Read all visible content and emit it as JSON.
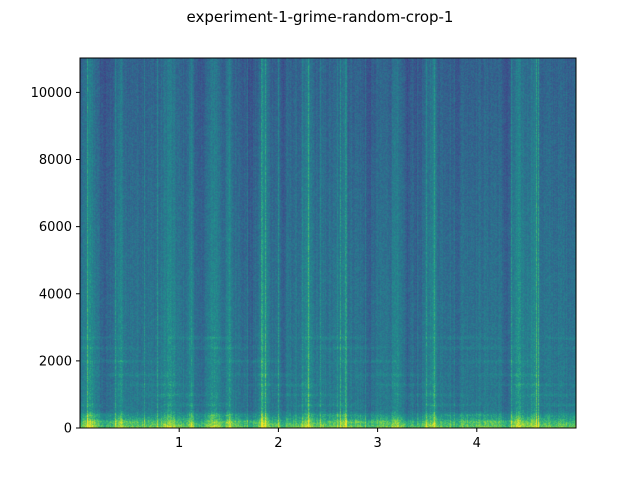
{
  "chart_data": {
    "type": "heatmap",
    "title": "experiment-1-grime-random-crop-1",
    "xlabel": "",
    "ylabel": "",
    "xlim": [
      0,
      5
    ],
    "ylim": [
      0,
      11025
    ],
    "x_ticks": [
      1,
      2,
      3,
      4
    ],
    "y_ticks": [
      0,
      2000,
      4000,
      6000,
      8000,
      10000
    ],
    "x_tick_labels": [
      "1",
      "2",
      "3",
      "4"
    ],
    "y_tick_labels": [
      "0",
      "2000",
      "4000",
      "6000",
      "8000",
      "10000"
    ],
    "colormap": "viridis",
    "grid": false,
    "bright_time_bands": [
      0.1,
      0.4,
      0.9,
      1.12,
      1.35,
      1.5,
      1.85,
      2.3,
      2.65,
      3.18,
      3.55,
      4.42,
      4.57
    ],
    "dark_time_bands": [
      0.25,
      1.2,
      1.7,
      2.05,
      2.9,
      3.3,
      3.4,
      3.78,
      4.3
    ],
    "harmonic_bands_hz": [
      200,
      400,
      700,
      1000,
      1300,
      1600,
      2000,
      2400,
      2700
    ]
  }
}
